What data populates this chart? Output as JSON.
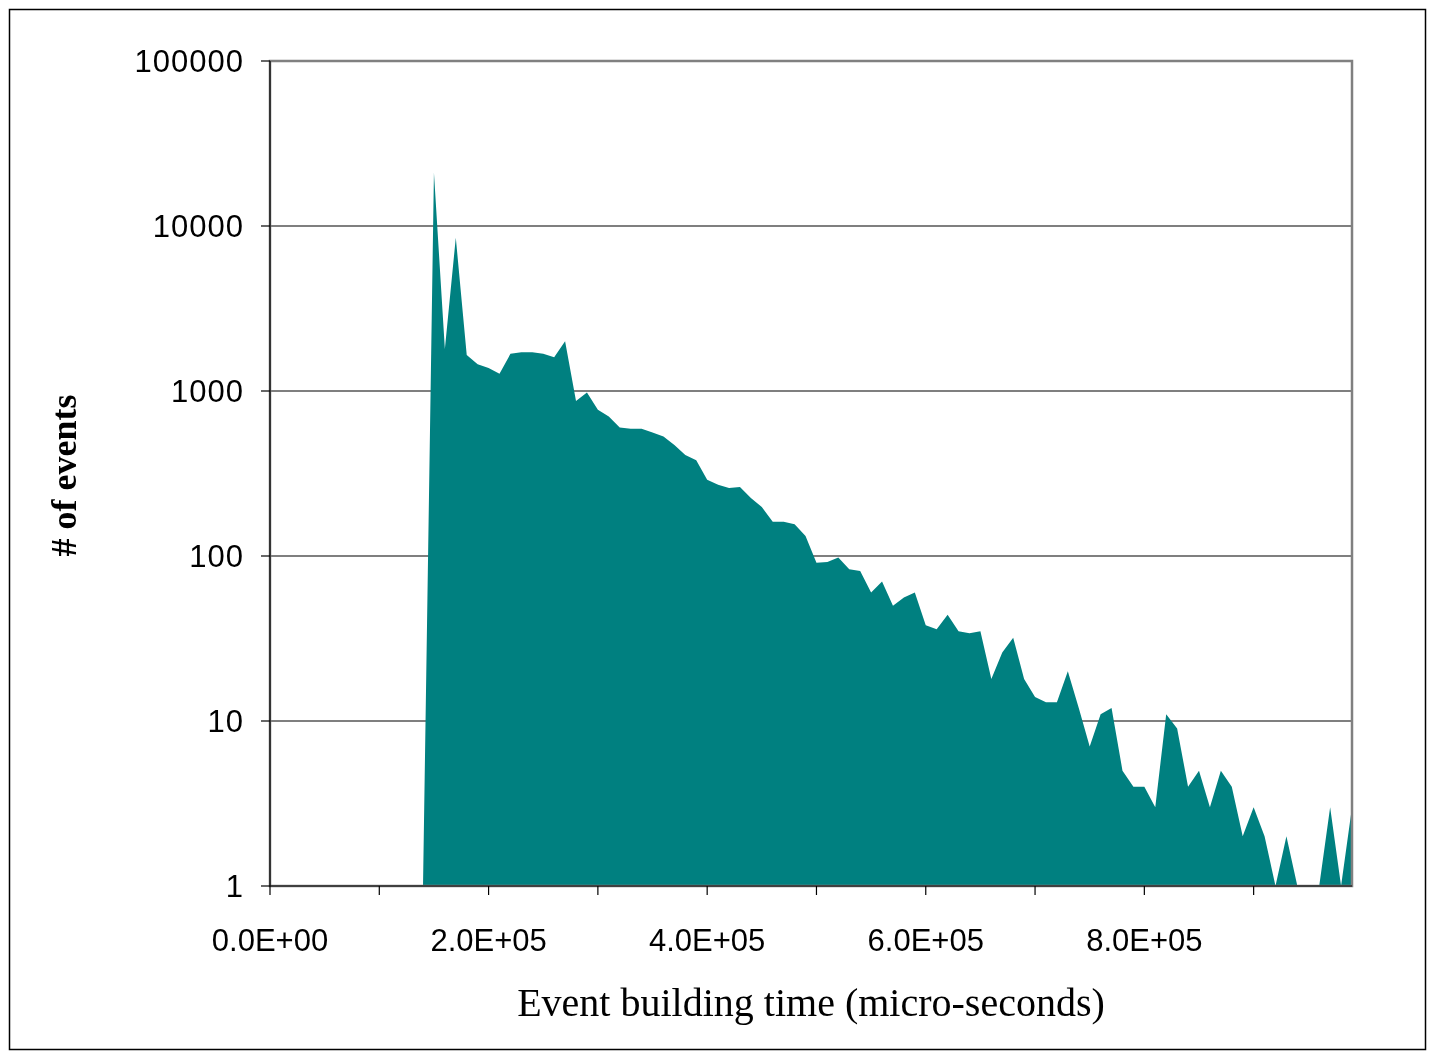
{
  "chart_data": {
    "type": "area",
    "xlabel": "Event building time (micro-seconds)",
    "ylabel": "# of events",
    "log": "y",
    "grid": "y",
    "x": [
      140000,
      150000,
      160000,
      170000,
      180000,
      190000,
      200000,
      210000,
      220000,
      230000,
      240000,
      250000,
      260000,
      270000,
      280000,
      290000,
      300000,
      310000,
      320000,
      330000,
      340000,
      350000,
      360000,
      370000,
      380000,
      390000,
      400000,
      410000,
      420000,
      430000,
      440000,
      450000,
      460000,
      470000,
      480000,
      490000,
      500000,
      510000,
      520000,
      530000,
      540000,
      550000,
      560000,
      570000,
      580000,
      590000,
      600000,
      610000,
      620000,
      630000,
      640000,
      650000,
      660000,
      670000,
      680000,
      690000,
      700000,
      710000,
      720000,
      730000,
      740000,
      750000,
      760000,
      770000,
      780000,
      790000,
      800000,
      810000,
      820000,
      830000,
      840000,
      850000,
      860000,
      870000,
      880000,
      890000,
      900000,
      910000,
      920000,
      930000,
      940000,
      950000,
      960000,
      970000,
      980000,
      990000
    ],
    "series": [
      {
        "color": "#008080",
        "values": [
          1,
          21000,
          1800,
          8500,
          1650,
          1450,
          1380,
          1270,
          1680,
          1720,
          1720,
          1680,
          1600,
          2000,
          870,
          980,
          770,
          700,
          600,
          590,
          590,
          560,
          530,
          470,
          410,
          380,
          290,
          270,
          258,
          262,
          225,
          198,
          161,
          161,
          156,
          132,
          91,
          92,
          98,
          83,
          81,
          60,
          70,
          50,
          56,
          60,
          38,
          36,
          44,
          35,
          34,
          35,
          18,
          26,
          32,
          18,
          14,
          13,
          13,
          20,
          12,
          7,
          11,
          12,
          5,
          4,
          4,
          3,
          11,
          9,
          4,
          5,
          3,
          5,
          4,
          2,
          3,
          2,
          1,
          2,
          1,
          1,
          1,
          3,
          1,
          3
        ]
      }
    ],
    "xlim": [
      0,
      990000
    ],
    "ylim": [
      1,
      100000
    ],
    "yticks": [
      1,
      10,
      100,
      1000,
      10000,
      100000
    ],
    "xticks": [
      {
        "value": 0,
        "label": "0.0E+00"
      },
      {
        "value": 100000,
        "label": null
      },
      {
        "value": 200000,
        "label": "2.0E+05"
      },
      {
        "value": 300000,
        "label": null
      },
      {
        "value": 400000,
        "label": "4.0E+05"
      },
      {
        "value": 500000,
        "label": null
      },
      {
        "value": 600000,
        "label": "6.0E+05"
      },
      {
        "value": 700000,
        "label": null
      },
      {
        "value": 800000,
        "label": "8.0E+05"
      },
      {
        "value": 900000,
        "label": null
      }
    ]
  }
}
